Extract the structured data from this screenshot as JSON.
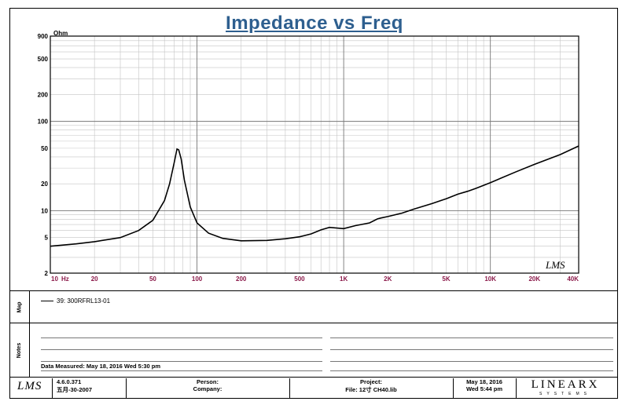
{
  "chart_data": {
    "type": "line",
    "title": "Impedance vs Freq",
    "y_unit": "Ohm",
    "x_unit": "Hz",
    "x_scale": "log",
    "y_scale": "log",
    "xlim": [
      10,
      40000
    ],
    "ylim": [
      2,
      900
    ],
    "grid": true,
    "x_ticks": [
      {
        "value": 10,
        "label": "10"
      },
      {
        "value": 20,
        "label": "20"
      },
      {
        "value": 50,
        "label": "50"
      },
      {
        "value": 100,
        "label": "100"
      },
      {
        "value": 200,
        "label": "200"
      },
      {
        "value": 500,
        "label": "500"
      },
      {
        "value": 1000,
        "label": "1K"
      },
      {
        "value": 2000,
        "label": "2K"
      },
      {
        "value": 5000,
        "label": "5K"
      },
      {
        "value": 10000,
        "label": "10K"
      },
      {
        "value": 20000,
        "label": "20K"
      },
      {
        "value": 40000,
        "label": "40K"
      }
    ],
    "y_ticks": [
      {
        "value": 900,
        "label": "900"
      },
      {
        "value": 500,
        "label": "500"
      },
      {
        "value": 200,
        "label": "200"
      },
      {
        "value": 100,
        "label": "100"
      },
      {
        "value": 50,
        "label": "50"
      },
      {
        "value": 20,
        "label": "20"
      },
      {
        "value": 10,
        "label": "10"
      },
      {
        "value": 5,
        "label": "5"
      },
      {
        "value": 2,
        "label": "2"
      }
    ],
    "series": [
      {
        "name": "39: 300RFRL13-01",
        "color": "#000000",
        "x": [
          10,
          15,
          20,
          30,
          40,
          50,
          60,
          65,
          70,
          73,
          75,
          78,
          82,
          90,
          100,
          120,
          150,
          200,
          300,
          400,
          500,
          600,
          700,
          800,
          1000,
          1200,
          1500,
          1700,
          1800,
          2000,
          2500,
          3000,
          4000,
          5000,
          6000,
          7000,
          8000,
          10000,
          15000,
          20000,
          30000,
          40000
        ],
        "y": [
          4.0,
          4.25,
          4.5,
          5.0,
          6.0,
          7.8,
          13,
          20,
          35,
          49,
          48,
          38,
          22,
          11,
          7.3,
          5.6,
          4.9,
          4.6,
          4.65,
          4.85,
          5.1,
          5.5,
          6.1,
          6.5,
          6.3,
          6.8,
          7.3,
          8.1,
          8.3,
          8.6,
          9.4,
          10.4,
          12.0,
          13.6,
          15.3,
          16.5,
          17.8,
          20.6,
          27.3,
          33,
          42.5,
          53
        ]
      }
    ]
  },
  "legend": {
    "entry": "39: 300RFRL13-01"
  },
  "side_labels": {
    "map": "Map",
    "notes": "Notes"
  },
  "notes": {
    "measured": "Data Measured: May 18, 2016  Wed  5:30 pm"
  },
  "footer": {
    "lms_logo": "LMS",
    "version": "4.6.0.371",
    "build_date": "五月-30-2007",
    "person": "Person:",
    "company": "Company:",
    "project": "Project:",
    "file": "File: 12寸 CH40.lib",
    "date": "May 18, 2016",
    "time": "Wed  5:44 pm",
    "brand": "LINEARX",
    "brand_sub": "SYSTEMS"
  },
  "plot_logo": "LMS"
}
